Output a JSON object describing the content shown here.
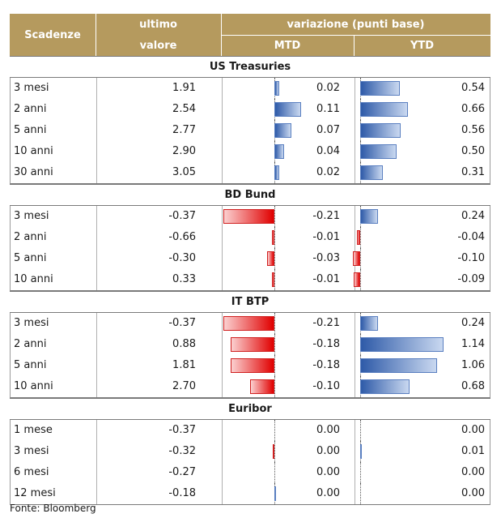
{
  "headers": {
    "scadenze": "Scadenze",
    "ultimo_line1": "ultimo",
    "ultimo_line2": "valore",
    "variazione": "variazione (punti base)",
    "mtd": "MTD",
    "ytd": "YTD"
  },
  "sections": [
    {
      "title": "US Treasuries",
      "rows": [
        {
          "scadenza": "3 mesi",
          "valore": "1.91",
          "mtd": 0.02,
          "mtd_label": "0.02",
          "ytd": 0.54,
          "ytd_label": "0.54"
        },
        {
          "scadenza": "2 anni",
          "valore": "2.54",
          "mtd": 0.11,
          "mtd_label": "0.11",
          "ytd": 0.66,
          "ytd_label": "0.66"
        },
        {
          "scadenza": "5 anni",
          "valore": "2.77",
          "mtd": 0.07,
          "mtd_label": "0.07",
          "ytd": 0.56,
          "ytd_label": "0.56"
        },
        {
          "scadenza": "10 anni",
          "valore": "2.90",
          "mtd": 0.04,
          "mtd_label": "0.04",
          "ytd": 0.5,
          "ytd_label": "0.50"
        },
        {
          "scadenza": "30 anni",
          "valore": "3.05",
          "mtd": 0.02,
          "mtd_label": "0.02",
          "ytd": 0.31,
          "ytd_label": "0.31"
        }
      ]
    },
    {
      "title": "BD Bund",
      "rows": [
        {
          "scadenza": "3 mesi",
          "valore": "-0.37",
          "mtd": -0.21,
          "mtd_label": "-0.21",
          "ytd": 0.24,
          "ytd_label": "0.24"
        },
        {
          "scadenza": "2 anni",
          "valore": "-0.66",
          "mtd": -0.01,
          "mtd_label": "-0.01",
          "ytd": -0.04,
          "ytd_label": "-0.04"
        },
        {
          "scadenza": "5 anni",
          "valore": "-0.30",
          "mtd": -0.03,
          "mtd_label": "-0.03",
          "ytd": -0.1,
          "ytd_label": "-0.10"
        },
        {
          "scadenza": "10 anni",
          "valore": "0.33",
          "mtd": -0.01,
          "mtd_label": "-0.01",
          "ytd": -0.09,
          "ytd_label": "-0.09"
        }
      ]
    },
    {
      "title": "IT BTP",
      "rows": [
        {
          "scadenza": "3 mesi",
          "valore": "-0.37",
          "mtd": -0.21,
          "mtd_label": "-0.21",
          "ytd": 0.24,
          "ytd_label": "0.24"
        },
        {
          "scadenza": "2 anni",
          "valore": "0.88",
          "mtd": -0.18,
          "mtd_label": "-0.18",
          "ytd": 1.14,
          "ytd_label": "1.14"
        },
        {
          "scadenza": "5 anni",
          "valore": "1.81",
          "mtd": -0.18,
          "mtd_label": "-0.18",
          "ytd": 1.06,
          "ytd_label": "1.06"
        },
        {
          "scadenza": "10 anni",
          "valore": "2.70",
          "mtd": -0.1,
          "mtd_label": "-0.10",
          "ytd": 0.68,
          "ytd_label": "0.68"
        }
      ]
    },
    {
      "title": "Euribor",
      "rows": [
        {
          "scadenza": "1 mese",
          "valore": "-0.37",
          "mtd": 0.0,
          "mtd_label": "0.00",
          "ytd": 0.0,
          "ytd_label": "0.00"
        },
        {
          "scadenza": "3 mesi",
          "valore": "-0.32",
          "mtd": -0.001,
          "mtd_label": "0.00",
          "ytd": 0.01,
          "ytd_label": "0.01"
        },
        {
          "scadenza": "6 mesi",
          "valore": "-0.27",
          "mtd": 0.0,
          "mtd_label": "0.00",
          "ytd": 0.0,
          "ytd_label": "0.00"
        },
        {
          "scadenza": "12 mesi",
          "valore": "-0.18",
          "mtd": 0.001,
          "mtd_label": "0.00",
          "ytd": 0.0,
          "ytd_label": "0.00"
        }
      ]
    }
  ],
  "source": "Fonte: Bloomberg",
  "colors": {
    "header_bg": "#b59a5e",
    "positive_bar": "#2e5aa8",
    "negative_bar": "#e00000"
  }
}
